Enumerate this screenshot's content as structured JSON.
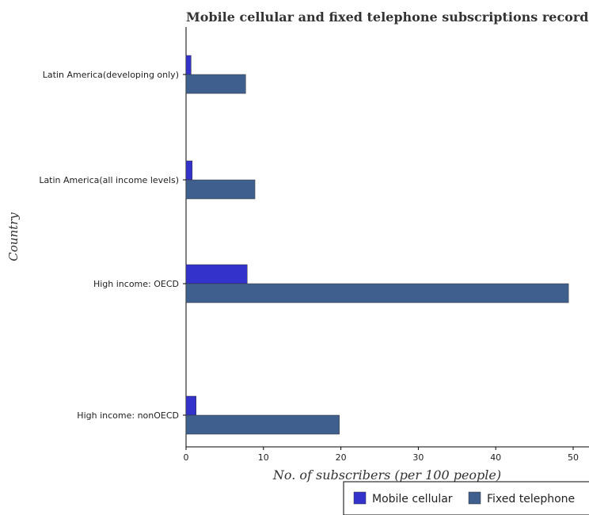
{
  "chart_data": {
    "type": "bar",
    "orientation": "horizontal",
    "title": "Mobile cellular and fixed telephone subscriptions recorded i",
    "xlabel": "No. of subscribers (per 100 people)",
    "ylabel": "Country",
    "categories": [
      "High income: nonOECD",
      "High income: OECD",
      "Latin America(all income levels)",
      "Latin America(developing only)"
    ],
    "series": [
      {
        "name": "Mobile cellular",
        "color": "#3333cc",
        "values": [
          1.3,
          7.9,
          0.8,
          0.65
        ]
      },
      {
        "name": "Fixed telephone",
        "color": "#3f5f8f",
        "values": [
          19.8,
          49.4,
          8.9,
          7.7
        ]
      }
    ],
    "xlim": [
      0,
      51.5
    ],
    "xticks": [
      0,
      10,
      20,
      30,
      40,
      50
    ],
    "legend_position": "bottom-right",
    "grid": false
  }
}
